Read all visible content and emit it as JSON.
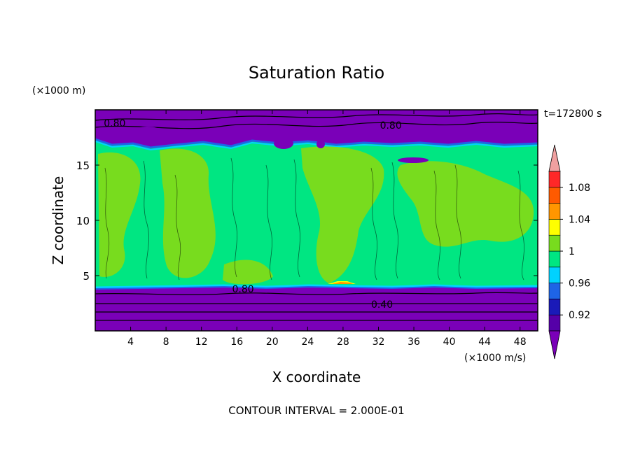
{
  "chart_data": {
    "type": "heatmap",
    "title": "Saturation Ratio",
    "time_label": "t=172800 s",
    "xlabel": "X coordinate",
    "ylabel": "Z coordinate",
    "x_unit": "(×1000 m/s)",
    "y_unit": "(×1000 m)",
    "footer": "CONTOUR INTERVAL = 2.000E-01",
    "xlim": [
      0,
      50
    ],
    "ylim": [
      0,
      20
    ],
    "x_ticks": [
      4,
      8,
      12,
      16,
      20,
      24,
      28,
      32,
      36,
      40,
      44,
      48
    ],
    "y_ticks": [
      5,
      10,
      15
    ],
    "contour_labels": [
      {
        "text": "0.80",
        "x": 2.2,
        "y": 18.8
      },
      {
        "text": "0.80",
        "x": 33.4,
        "y": 18.6
      },
      {
        "text": "0.80",
        "x": 16.7,
        "y": 3.8
      },
      {
        "text": "0.40",
        "x": 32.4,
        "y": 2.4
      }
    ],
    "colorbar": {
      "tick_labels": [
        "1.08",
        "1.04",
        "1",
        "0.96",
        "0.92"
      ],
      "tick_values": [
        1.08,
        1.04,
        1.0,
        0.96,
        0.92
      ],
      "levels": [
        0.9,
        0.92,
        0.94,
        0.96,
        0.98,
        1.0,
        1.02,
        1.04,
        1.06,
        1.08,
        1.1
      ],
      "colors": [
        "#5500a8",
        "#1a1ab8",
        "#1e64e6",
        "#00d2ff",
        "#00e682",
        "#78dc1e",
        "#ffff00",
        "#ff9600",
        "#ff5a00",
        "#ff2828"
      ],
      "under_color": "#7a00b8",
      "over_color": "#f0a0a0"
    },
    "regions": {
      "upper_dry_layer": {
        "z_min": 17.5,
        "z_max": 20,
        "value": "< 0.90"
      },
      "lower_dry_layer": {
        "z_min": 0,
        "z_max": 4,
        "value": "< 0.90"
      },
      "mid_cloud_layer": {
        "z_min": 4,
        "z_max": 17.5,
        "value": "0.98 – 1.02"
      }
    }
  }
}
